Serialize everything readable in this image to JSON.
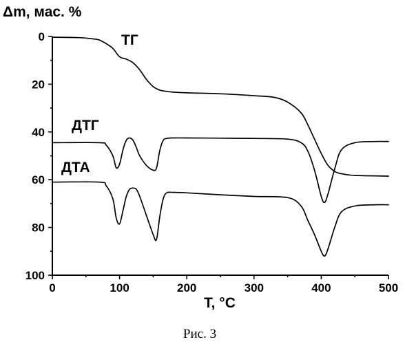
{
  "chart_data": {
    "type": "line",
    "title": "",
    "xlabel": "T, °C",
    "ylabel": "Δm, мас. %",
    "xlim": [
      0,
      500
    ],
    "ylim": [
      0,
      100
    ],
    "y_inverted": true,
    "grid": false,
    "x_ticks": [
      0,
      100,
      200,
      300,
      400,
      500
    ],
    "y_ticks": [
      0,
      20,
      40,
      60,
      80,
      100
    ],
    "series": [
      {
        "name": "ТГ",
        "x": [
          0,
          40,
          60,
          70,
          80,
          90,
          100,
          110,
          120,
          130,
          140,
          150,
          160,
          170,
          180,
          200,
          250,
          300,
          330,
          350,
          370,
          380,
          390,
          400,
          410,
          420,
          430,
          450,
          500
        ],
        "values": [
          0.3,
          0.5,
          1,
          1.5,
          3,
          5,
          8.5,
          9.5,
          11,
          14,
          18,
          21,
          22.5,
          23,
          23.3,
          23.6,
          24,
          24.8,
          25.5,
          27.5,
          32,
          37,
          43,
          49,
          54,
          56.5,
          57.5,
          58.2,
          58.5
        ]
      },
      {
        "name": "ДТГ",
        "x": [
          0,
          70,
          80,
          90,
          95,
          100,
          105,
          110,
          115,
          120,
          125,
          130,
          140,
          150,
          155,
          160,
          165,
          170,
          180,
          200,
          250,
          300,
          350,
          370,
          380,
          390,
          400,
          405,
          410,
          420,
          430,
          450,
          480,
          500
        ],
        "values": [
          44.5,
          44.5,
          45.5,
          50,
          55,
          53.5,
          47.5,
          43.5,
          42.5,
          43.5,
          46.5,
          50,
          54,
          56,
          55,
          47.5,
          43.5,
          42.7,
          42.5,
          42.5,
          42.6,
          42.7,
          43,
          44.5,
          48,
          56,
          67,
          69.5,
          66,
          55.5,
          47.5,
          44.5,
          44,
          44
        ]
      },
      {
        "name": "ДТА",
        "x": [
          0,
          70,
          80,
          90,
          95,
          100,
          105,
          110,
          115,
          120,
          125,
          130,
          140,
          150,
          155,
          160,
          165,
          170,
          180,
          200,
          250,
          300,
          350,
          370,
          380,
          390,
          400,
          405,
          410,
          420,
          430,
          450,
          480,
          500
        ],
        "values": [
          61,
          61,
          62.5,
          68,
          76,
          78.5,
          73,
          67,
          64,
          63.5,
          64,
          67,
          75,
          83,
          85,
          75,
          68,
          65.5,
          65.3,
          65.5,
          66.3,
          67,
          67.5,
          71,
          77,
          83,
          90,
          92,
          89,
          80,
          73.5,
          71,
          70.5,
          70.5
        ]
      }
    ],
    "labels": {
      "tg": "ТГ",
      "dtg": "ДТГ",
      "dta": "ДТА"
    },
    "caption": "Рис. 3"
  }
}
